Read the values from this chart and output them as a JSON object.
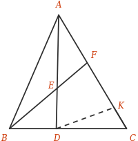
{
  "A": [
    0.42,
    0.91
  ],
  "B": [
    0.05,
    0.07
  ],
  "C": [
    0.93,
    0.07
  ],
  "t_D_on_BC": 0.4,
  "t_F_on_AC": 0.42,
  "t_K_on_FC": 0.68,
  "line_color": "#2e2e2e",
  "label_color": "#cc3300",
  "fontsize": 8.5,
  "bg_color": "#ffffff",
  "lw": 1.25,
  "label_offsets": {
    "A": [
      0,
      0.04,
      "center",
      "bottom"
    ],
    "B": [
      -0.02,
      -0.04,
      "right",
      "top"
    ],
    "C": [
      0.02,
      -0.04,
      "left",
      "top"
    ],
    "D": [
      0.0,
      -0.04,
      "center",
      "top"
    ],
    "E": [
      -0.025,
      0.015,
      "right",
      "center"
    ],
    "F": [
      0.025,
      0.02,
      "left",
      "bottom"
    ],
    "K": [
      0.025,
      0.01,
      "left",
      "center"
    ]
  }
}
